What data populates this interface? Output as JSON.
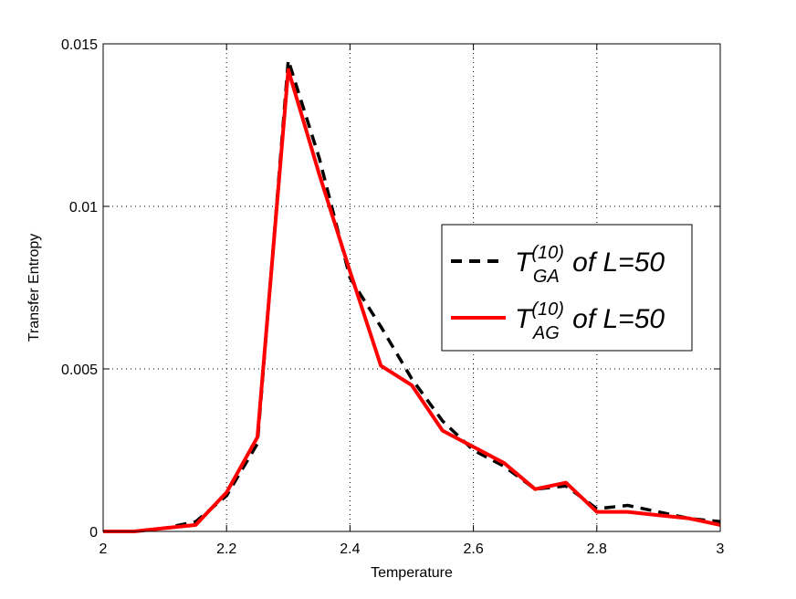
{
  "chart_data": {
    "type": "line",
    "xlabel": "Temperature",
    "ylabel": "Transfer Entropy",
    "xlim": [
      2,
      3
    ],
    "ylim": [
      0,
      0.015
    ],
    "xticks": [
      2,
      2.2,
      2.4,
      2.6,
      2.8,
      3
    ],
    "xtick_labels": [
      "2",
      "2.2",
      "2.4",
      "2.6",
      "2.8",
      "3"
    ],
    "yticks": [
      0,
      0.005,
      0.01,
      0.015
    ],
    "ytick_labels": [
      "0",
      "0.005",
      "0.01",
      "0.015"
    ],
    "grid": true,
    "legend_placement": "center-right",
    "series": [
      {
        "name": "T(10) GA of L=50",
        "legend": {
          "base": "T",
          "sup": "(10)",
          "sub": "GA",
          "suffix": " of L=50"
        },
        "color": "#000000",
        "style": "dashed",
        "x": [
          2.0,
          2.05,
          2.1,
          2.15,
          2.2,
          2.25,
          2.3,
          2.35,
          2.4,
          2.45,
          2.5,
          2.55,
          2.6,
          2.65,
          2.7,
          2.75,
          2.8,
          2.85,
          2.9,
          2.95,
          3.0
        ],
        "y": [
          0.0,
          0.0,
          0.0001,
          0.0003,
          0.0011,
          0.0027,
          0.0145,
          0.0115,
          0.0078,
          0.0063,
          0.0047,
          0.0034,
          0.0025,
          0.002,
          0.0013,
          0.0014,
          0.0007,
          0.0008,
          0.0006,
          0.0004,
          0.0003
        ]
      },
      {
        "name": "T(10) AG of L=50",
        "legend": {
          "base": "T",
          "sup": "(10)",
          "sub": "AG",
          "suffix": " of L=50"
        },
        "color": "#ff0000",
        "style": "solid",
        "x": [
          2.0,
          2.05,
          2.1,
          2.15,
          2.2,
          2.25,
          2.3,
          2.35,
          2.4,
          2.45,
          2.5,
          2.55,
          2.6,
          2.65,
          2.7,
          2.75,
          2.8,
          2.85,
          2.9,
          2.95,
          3.0
        ],
        "y": [
          0.0,
          0.0,
          0.0001,
          0.0002,
          0.0012,
          0.0029,
          0.0142,
          0.011,
          0.008,
          0.0051,
          0.0045,
          0.0031,
          0.0026,
          0.0021,
          0.0013,
          0.0015,
          0.0006,
          0.0006,
          0.0005,
          0.0004,
          0.0002
        ]
      }
    ]
  }
}
